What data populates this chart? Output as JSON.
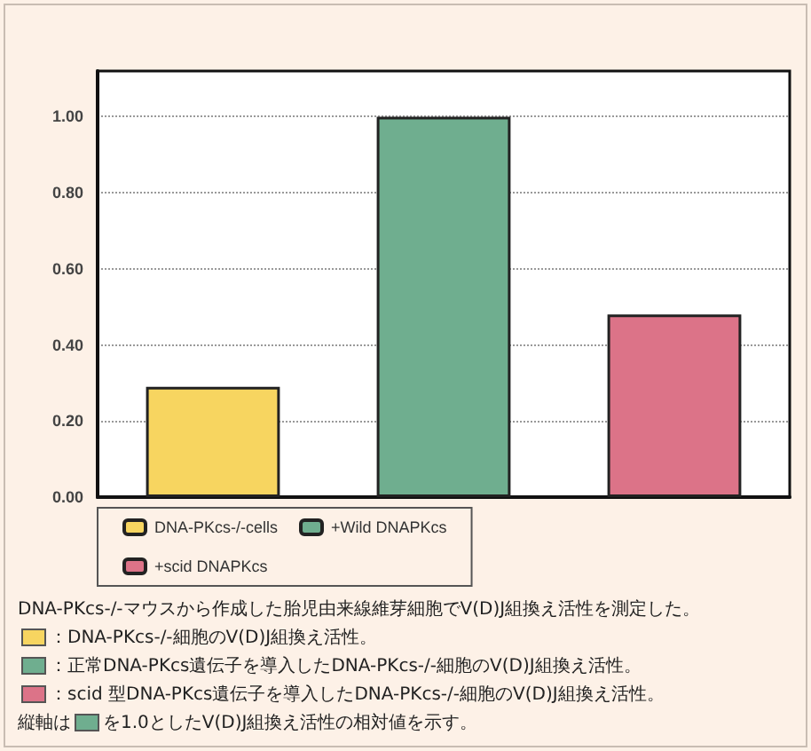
{
  "chart_data": {
    "type": "bar",
    "categories": [
      null,
      null,
      null
    ],
    "series": [
      {
        "name": "DNA-PKcs-/-cells",
        "color": "#f7d560",
        "values": [
          0.29,
          null,
          null
        ]
      },
      {
        "name": "+Wild DNAPKcs",
        "color": "#6fae8f",
        "values": [
          null,
          1.0,
          null
        ]
      },
      {
        "name": "+scid DNAPKcs",
        "color": "#dc7388",
        "values": [
          null,
          null,
          0.48
        ]
      }
    ],
    "ylim": [
      0,
      1.12
    ],
    "yticks": [
      {
        "value": 0,
        "label": "0.00"
      },
      {
        "value": 0.2,
        "label": "0.20"
      },
      {
        "value": 0.4,
        "label": "0.40"
      },
      {
        "value": 0.6,
        "label": "0.60"
      },
      {
        "value": 0.8,
        "label": "0.80"
      },
      {
        "value": 1.0,
        "label": "1.00"
      }
    ],
    "grid": "y",
    "legend": "bottom",
    "annotations": [
      "DNA-PKcs-/-マウスから作成した胎児由来線維芽細胞でV(D)J組換え活性を測定した。",
      "：DNA-PKcs-/-細胞のV(D)J組換え活性。",
      "：正常DNA-PKcs遺伝子を導入したDNA-PKcs-/-細胞のV(D)J組換え活性。",
      "：scid 型DNA-PKcs遺伝子を導入したDNA-PKcs-/-細胞のV(D)J組換え活性。",
      "縦軸は を1.0としたV(D)J組換え活性の相対値を示す。"
    ]
  }
}
